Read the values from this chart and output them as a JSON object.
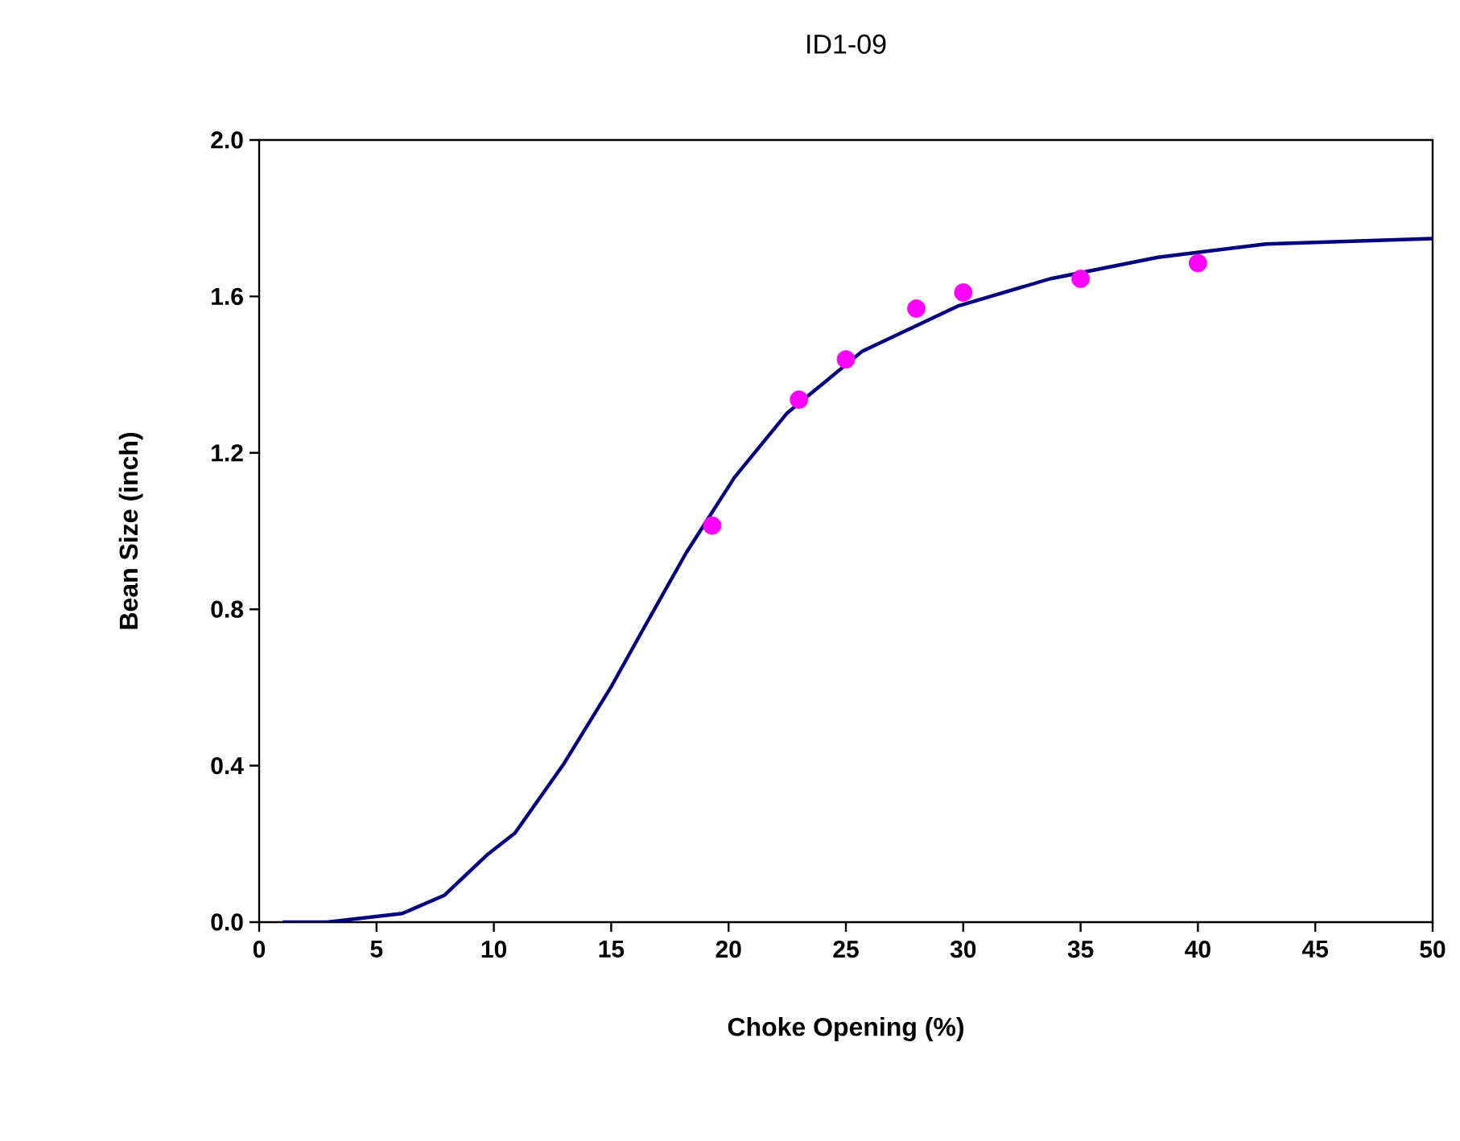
{
  "chart_data": {
    "type": "line",
    "title": "ID1-09",
    "xlabel": "Choke Opening (%)",
    "ylabel": "Bean Size (inch)",
    "xlim": [
      0,
      50
    ],
    "xticks": [
      0,
      5,
      10,
      15,
      20,
      25,
      30,
      35,
      40,
      45,
      50
    ],
    "ylim": [
      0,
      2
    ],
    "yticks": [
      {
        "value": 0,
        "label": "0.0"
      },
      {
        "value": 0.4,
        "label": "0.4"
      },
      {
        "value": 0.8,
        "label": "0.8"
      },
      {
        "value": 1.2,
        "label": "1.2"
      },
      {
        "value": 1.6,
        "label": "1.6"
      },
      {
        "value": 2,
        "label": "2.0"
      }
    ],
    "grid": false,
    "series": [
      {
        "color": "#000080",
        "marker": "none",
        "line_style": "solid",
        "x": [
          1,
          2.9,
          6.1,
          7.9,
          9.75,
          10.9,
          12.95,
          15,
          16.4,
          18.2,
          20.25,
          22.5,
          25.7,
          29.8,
          33.7,
          38.3,
          42.9,
          50
        ],
        "values": [
          0,
          0,
          0.022,
          0.069,
          0.174,
          0.228,
          0.402,
          0.602,
          0.753,
          0.945,
          1.137,
          1.302,
          1.46,
          1.576,
          1.645,
          1.7,
          1.734,
          1.748
        ]
      },
      {
        "type": "scatter",
        "color": "#ff00ff",
        "marker": "circle",
        "x": [
          19.3,
          23,
          25,
          28,
          30,
          35,
          40
        ],
        "values": [
          1.014,
          1.336,
          1.439,
          1.569,
          1.61,
          1.645,
          1.685
        ]
      }
    ]
  }
}
